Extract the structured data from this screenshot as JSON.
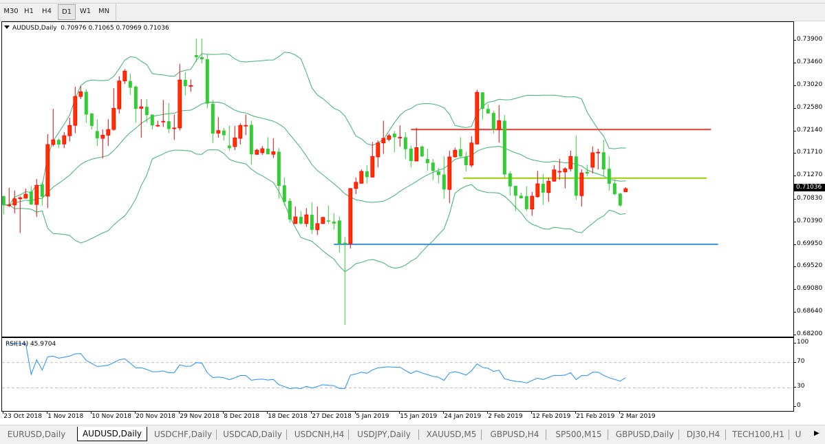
{
  "toolbar": {
    "timeframes": [
      {
        "label": "M30",
        "active": false
      },
      {
        "label": "H1",
        "active": false
      },
      {
        "label": "H4",
        "active": false
      },
      {
        "label": "D1",
        "active": true
      },
      {
        "label": "W1",
        "active": false
      },
      {
        "label": "MN",
        "active": false
      }
    ]
  },
  "chart": {
    "symbol_label": "AUDUSD,Daily",
    "ohlc_label": "0.70976 0.71065 0.70969 0.71036",
    "current_price": "0.71036",
    "colors": {
      "bull": "#ff3300",
      "bull_outline": "#ff0000",
      "bear": "#32cd32",
      "bands": "#3cb371",
      "rsi": "#1e90ff",
      "grid_dash": "#c0c0c0"
    },
    "indicators": {
      "bollinger_period": 20,
      "bollinger_deviation": 2,
      "rsi_period": 14
    }
  },
  "chart_data": {
    "type": "candlestick",
    "ylim": [
      0.6816,
      0.7426
    ],
    "y_ticks": [
      "0.73900",
      "0.73460",
      "0.73020",
      "0.72580",
      "0.72140",
      "0.71710",
      "0.71270",
      "0.70830",
      "0.70390",
      "0.69950",
      "0.69520",
      "0.69080",
      "0.68640",
      "0.68200"
    ],
    "x_ticks": [
      {
        "bar": 0,
        "label": "23 Oct 2018"
      },
      {
        "bar": 8,
        "label": "1 Nov 2018"
      },
      {
        "bar": 16,
        "label": "10 Nov 2018"
      },
      {
        "bar": 24,
        "label": "20 Nov 2018"
      },
      {
        "bar": 32,
        "label": "29 Nov 2018"
      },
      {
        "bar": 40,
        "label": "8 Dec 2018"
      },
      {
        "bar": 48,
        "label": "18 Dec 2018"
      },
      {
        "bar": 56,
        "label": "27 Dec 2018"
      },
      {
        "bar": 64,
        "label": "5 Jan 2019"
      },
      {
        "bar": 72,
        "label": "15 Jan 2019"
      },
      {
        "bar": 80,
        "label": "24 Jan 2019"
      },
      {
        "bar": 88,
        "label": "2 Feb 2019"
      },
      {
        "bar": 96,
        "label": "12 Feb 2019"
      },
      {
        "bar": 104,
        "label": "21 Feb 2019"
      },
      {
        "bar": 112,
        "label": "2 Mar 2019"
      }
    ],
    "ohlc": [
      [
        0.7089,
        0.709,
        0.7054,
        0.7072
      ],
      [
        0.7072,
        0.7105,
        0.7068,
        0.7072
      ],
      [
        0.7072,
        0.71,
        0.7056,
        0.7084
      ],
      [
        0.7084,
        0.7089,
        0.7018,
        0.7086
      ],
      [
        0.7085,
        0.7104,
        0.7085,
        0.7093
      ],
      [
        0.7098,
        0.7109,
        0.7072,
        0.7073
      ],
      [
        0.7073,
        0.7122,
        0.7049,
        0.711
      ],
      [
        0.7112,
        0.7116,
        0.7071,
        0.7088
      ],
      [
        0.7089,
        0.7209,
        0.7066,
        0.7189
      ],
      [
        0.7189,
        0.7258,
        0.7185,
        0.7198
      ],
      [
        0.7198,
        0.7201,
        0.7182,
        0.7189
      ],
      [
        0.719,
        0.7213,
        0.7182,
        0.7206
      ],
      [
        0.7206,
        0.7241,
        0.7195,
        0.7226
      ],
      [
        0.7226,
        0.7301,
        0.7211,
        0.7282
      ],
      [
        0.7282,
        0.7302,
        0.7277,
        0.7291
      ],
      [
        0.7291,
        0.7296,
        0.7231,
        0.7247
      ],
      [
        0.7249,
        0.725,
        0.7218,
        0.7225
      ],
      [
        0.7215,
        0.7238,
        0.7186,
        0.7201
      ],
      [
        0.7201,
        0.7218,
        0.7162,
        0.7207
      ],
      [
        0.7207,
        0.7238,
        0.7186,
        0.7218
      ],
      [
        0.7218,
        0.7298,
        0.7216,
        0.7259
      ],
      [
        0.7258,
        0.7321,
        0.7249,
        0.7312
      ],
      [
        0.7312,
        0.7335,
        0.7306,
        0.7331
      ],
      [
        0.7312,
        0.7326,
        0.7285,
        0.7299
      ],
      [
        0.7301,
        0.7303,
        0.7231,
        0.7258
      ],
      [
        0.7259,
        0.7277,
        0.7202,
        0.7262
      ],
      [
        0.7262,
        0.7277,
        0.7231,
        0.7246
      ],
      [
        0.7247,
        0.7247,
        0.7218,
        0.7226
      ],
      [
        0.7226,
        0.7235,
        0.7223,
        0.7226
      ],
      [
        0.7234,
        0.7275,
        0.7223,
        0.7234
      ],
      [
        0.7234,
        0.7269,
        0.7211,
        0.7219
      ],
      [
        0.7221,
        0.7247,
        0.7198,
        0.7221
      ],
      [
        0.7221,
        0.7345,
        0.7216,
        0.7314
      ],
      [
        0.7314,
        0.7329,
        0.7284,
        0.7302
      ],
      [
        0.7303,
        0.7315,
        0.7291,
        0.7303
      ],
      [
        0.7362,
        0.7394,
        0.7349,
        0.7358
      ],
      [
        0.7358,
        0.7394,
        0.7346,
        0.7354
      ],
      [
        0.7354,
        0.7364,
        0.7259,
        0.7268
      ],
      [
        0.7268,
        0.7275,
        0.7192,
        0.721
      ],
      [
        0.7211,
        0.7242,
        0.7202,
        0.7216
      ],
      [
        0.7216,
        0.7221,
        0.7197,
        0.7207
      ],
      [
        0.7187,
        0.7226,
        0.7177,
        0.7182
      ],
      [
        0.7185,
        0.7225,
        0.7178,
        0.7202
      ],
      [
        0.7201,
        0.723,
        0.7189,
        0.7226
      ],
      [
        0.7226,
        0.7247,
        0.7207,
        0.7226
      ],
      [
        0.7227,
        0.7235,
        0.715,
        0.717
      ],
      [
        0.717,
        0.7181,
        0.7169,
        0.7178
      ],
      [
        0.7173,
        0.7186,
        0.7169,
        0.7181
      ],
      [
        0.7181,
        0.7203,
        0.717,
        0.717
      ],
      [
        0.717,
        0.7201,
        0.7163,
        0.7175
      ],
      [
        0.7175,
        0.7182,
        0.7084,
        0.7109
      ],
      [
        0.711,
        0.7125,
        0.7071,
        0.7078
      ],
      [
        0.708,
        0.7085,
        0.7038,
        0.7044
      ],
      [
        0.7036,
        0.7069,
        0.7035,
        0.7049
      ],
      [
        0.7049,
        0.706,
        0.7034,
        0.7036
      ],
      [
        0.7036,
        0.7066,
        0.703,
        0.7053
      ],
      [
        0.7053,
        0.7077,
        0.7016,
        0.7024
      ],
      [
        0.7024,
        0.7069,
        0.7014,
        0.7036
      ],
      [
        0.7036,
        0.7049,
        0.7035,
        0.7048
      ],
      [
        0.7042,
        0.7071,
        0.7036,
        0.704
      ],
      [
        0.704,
        0.7056,
        0.7024,
        0.7036
      ],
      [
        0.7042,
        0.705,
        0.698,
        0.6997
      ],
      [
        0.6999,
        0.701,
        0.684,
        0.6996
      ],
      [
        0.6997,
        0.7104,
        0.6988,
        0.7104
      ],
      [
        0.7104,
        0.7125,
        0.7093,
        0.7116
      ],
      [
        0.7114,
        0.7141,
        0.7113,
        0.7137
      ],
      [
        0.7137,
        0.7149,
        0.7114,
        0.7126
      ],
      [
        0.7126,
        0.7194,
        0.7125,
        0.7166
      ],
      [
        0.7165,
        0.7197,
        0.7145,
        0.7192
      ],
      [
        0.7192,
        0.7235,
        0.7171,
        0.7201
      ],
      [
        0.7199,
        0.721,
        0.7195,
        0.7206
      ],
      [
        0.721,
        0.7215,
        0.7174,
        0.7203
      ],
      [
        0.7203,
        0.7226,
        0.7185,
        0.7203
      ],
      [
        0.7203,
        0.7213,
        0.7161,
        0.718
      ],
      [
        0.7181,
        0.7187,
        0.7145,
        0.7157
      ],
      [
        0.7157,
        0.7221,
        0.7157,
        0.7183
      ],
      [
        0.7185,
        0.7187,
        0.7165,
        0.7166
      ],
      [
        0.7161,
        0.7181,
        0.7138,
        0.7153
      ],
      [
        0.7154,
        0.7161,
        0.712,
        0.7138
      ],
      [
        0.7137,
        0.7144,
        0.7114,
        0.713
      ],
      [
        0.7131,
        0.7166,
        0.7084,
        0.7102
      ],
      [
        0.7102,
        0.7177,
        0.7076,
        0.7165
      ],
      [
        0.7165,
        0.7183,
        0.7164,
        0.7178
      ],
      [
        0.718,
        0.7203,
        0.7164,
        0.7166
      ],
      [
        0.7166,
        0.7175,
        0.7137,
        0.7149
      ],
      [
        0.7149,
        0.7205,
        0.7145,
        0.7192
      ],
      [
        0.719,
        0.7295,
        0.7189,
        0.729
      ],
      [
        0.729,
        0.729,
        0.7237,
        0.7258
      ],
      [
        0.7258,
        0.7267,
        0.7249,
        0.7249
      ],
      [
        0.725,
        0.7254,
        0.721,
        0.7218
      ],
      [
        0.7219,
        0.7265,
        0.7193,
        0.7235
      ],
      [
        0.7235,
        0.7246,
        0.7125,
        0.7131
      ],
      [
        0.7133,
        0.7137,
        0.709,
        0.7108
      ],
      [
        0.7109,
        0.7109,
        0.706,
        0.709
      ],
      [
        0.709,
        0.7096,
        0.7084,
        0.7085
      ],
      [
        0.7089,
        0.7108,
        0.706,
        0.7064
      ],
      [
        0.7064,
        0.7097,
        0.7051,
        0.7089
      ],
      [
        0.7088,
        0.7138,
        0.7086,
        0.7113
      ],
      [
        0.7113,
        0.7132,
        0.7072,
        0.7096
      ],
      [
        0.7096,
        0.7125,
        0.7078,
        0.7118
      ],
      [
        0.7118,
        0.7149,
        0.7117,
        0.714
      ],
      [
        0.7137,
        0.7161,
        0.7121,
        0.7137
      ],
      [
        0.7136,
        0.7145,
        0.7104,
        0.7142
      ],
      [
        0.7142,
        0.7177,
        0.7137,
        0.7166
      ],
      [
        0.7166,
        0.7206,
        0.7082,
        0.709
      ],
      [
        0.709,
        0.7141,
        0.7069,
        0.7134
      ],
      [
        0.7136,
        0.715,
        0.7128,
        0.7133
      ],
      [
        0.7145,
        0.7185,
        0.7133,
        0.7173
      ],
      [
        0.7174,
        0.7181,
        0.7141,
        0.7174
      ],
      [
        0.7174,
        0.7198,
        0.7128,
        0.7141
      ],
      [
        0.7142,
        0.7166,
        0.71,
        0.7113
      ],
      [
        0.7114,
        0.7121,
        0.7091,
        0.7093
      ],
      [
        0.7094,
        0.7096,
        0.7069,
        0.7071
      ],
      [
        0.70976,
        0.71065,
        0.70969,
        0.71036
      ]
    ],
    "levels": [
      {
        "price": 0.7218,
        "from_bar": 74,
        "to_bar": 128.5,
        "color": "#ff3b30"
      },
      {
        "price": 0.7124,
        "from_bar": 83.5,
        "to_bar": 127.7,
        "color": "#9acd00"
      },
      {
        "price": 0.6996,
        "from_bar": 60,
        "to_bar": 129.8,
        "color": "#3a8fdc"
      }
    ],
    "rsi": {
      "label": "RSI(14) 45.9704",
      "ylim": [
        0,
        100
      ],
      "y_ticks": [
        "100",
        "70",
        "30",
        "0"
      ],
      "levels": [
        70,
        30
      ]
    }
  },
  "tabs": [
    {
      "label": "EURUSD,Daily",
      "active": false
    },
    {
      "label": "AUDUSD,Daily",
      "active": true
    },
    {
      "label": "USDCHF,Daily",
      "active": false
    },
    {
      "label": "USDCAD,Daily",
      "active": false
    },
    {
      "label": "USDCNH,H4",
      "active": false
    },
    {
      "label": "USDJPY,Daily",
      "active": false
    },
    {
      "label": "XAUUSD,M5",
      "active": false
    },
    {
      "label": "GBPUSD,H4",
      "active": false
    },
    {
      "label": "SP500,M15",
      "active": false
    },
    {
      "label": "GBPUSD,Daily",
      "active": false
    },
    {
      "label": "DJ30,H4",
      "active": false
    },
    {
      "label": "TECH100,H1",
      "active": false
    },
    {
      "label": "U",
      "active": false
    }
  ]
}
